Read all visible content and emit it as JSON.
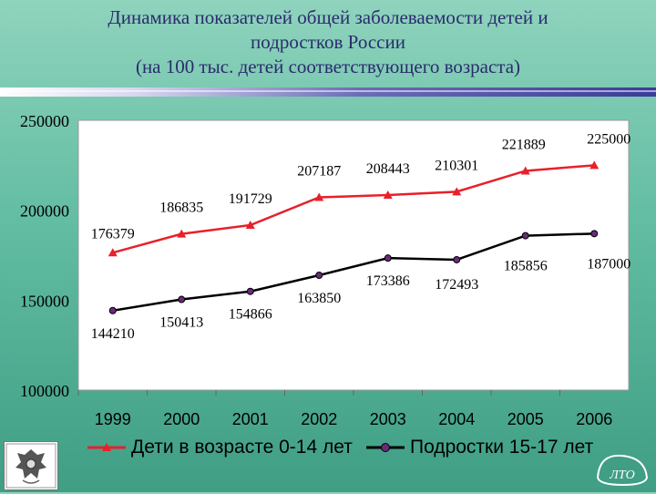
{
  "title": {
    "line1": "Динамика показателей общей заболеваемости детей и",
    "line2": "подростков России",
    "line3": "(на 100 тыс. детей соответствующего возраста)"
  },
  "logo_text": "ЛТО",
  "colors": {
    "series_children": "#e8202a",
    "series_teens": "#000000",
    "teens_marker": "#6a2a7a",
    "title": "#2b2b6e",
    "plot_bg": "#ffffff"
  },
  "chart_data": {
    "type": "line",
    "x": [
      "1999",
      "2000",
      "2001",
      "2002",
      "2003",
      "2004",
      "2005",
      "2006"
    ],
    "ylim": [
      100000,
      250000
    ],
    "yticks": [
      "100000",
      "150000",
      "200000",
      "250000"
    ],
    "grid": false,
    "legend_position": "bottom",
    "series": [
      {
        "name": "Дети в возрасте 0-14 лет",
        "values": [
          176379,
          186835,
          191729,
          207187,
          208443,
          210301,
          221889,
          225000
        ],
        "labels": [
          "176379",
          "186835",
          "191729",
          "207187",
          "208443",
          "210301",
          "221889",
          "225000"
        ],
        "marker": "triangle",
        "color": "#e8202a"
      },
      {
        "name": "Подростки 15-17 лет",
        "values": [
          144210,
          150413,
          154866,
          163850,
          173386,
          172493,
          185856,
          187000
        ],
        "labels": [
          "144210",
          "150413",
          "154866",
          "163850",
          "173386",
          "172493",
          "185856",
          "187000"
        ],
        "marker": "circle",
        "color": "#000000"
      }
    ]
  }
}
